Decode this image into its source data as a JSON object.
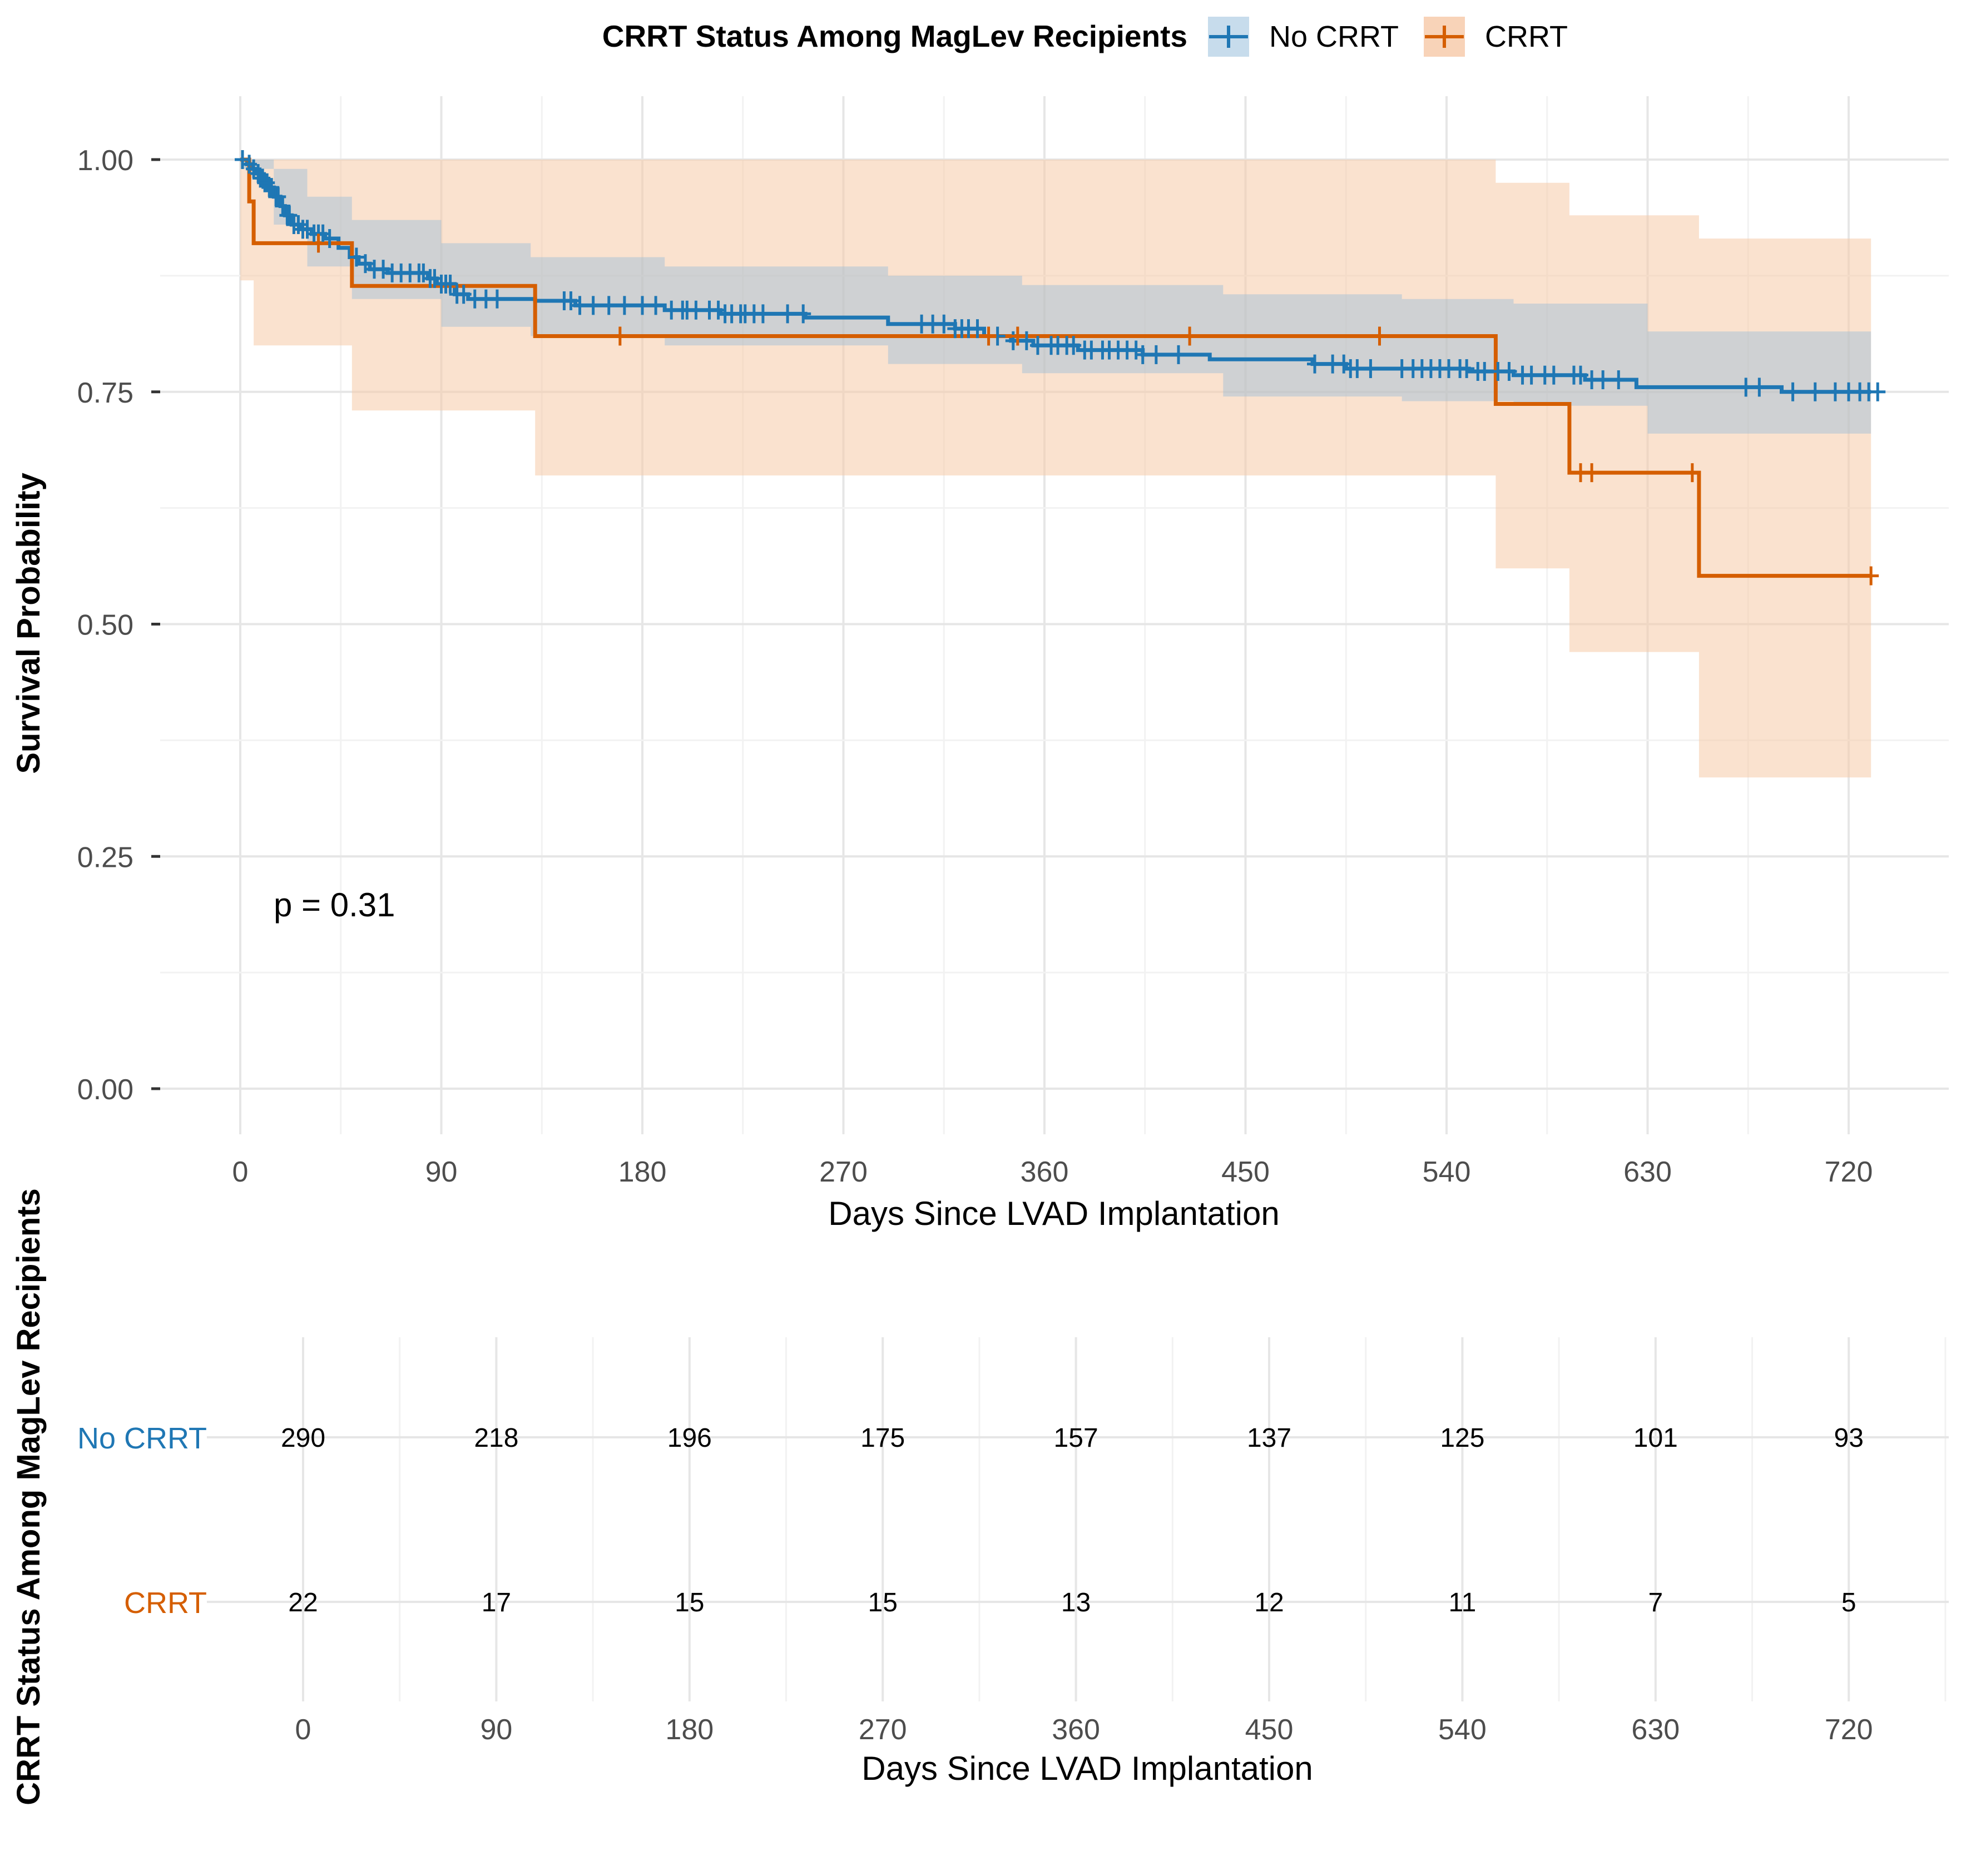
{
  "legend": {
    "title": "CRRT Status Among MagLev Recipients",
    "items": [
      {
        "label": "No CRRT",
        "color": "#1F77B4"
      },
      {
        "label": "CRRT",
        "color": "#D55E00"
      }
    ]
  },
  "annotation": "p = 0.31",
  "colors": {
    "no_crrt": "#1F77B4",
    "crrt": "#D55E00",
    "no_crrt_ci": "#9BBCD6",
    "crrt_ci": "#F5CBA7"
  },
  "chart_data": [
    {
      "type": "line",
      "subtype": "kaplan-meier",
      "title": "",
      "xlabel": "Days Since LVAD Implantation",
      "ylabel": "Survival Probability",
      "xlim": [
        -20,
        760
      ],
      "ylim": [
        -0.035,
        1.07
      ],
      "xticks": [
        0,
        90,
        180,
        270,
        360,
        450,
        540,
        630,
        720
      ],
      "yticks": [
        0.0,
        0.25,
        0.5,
        0.75,
        1.0
      ],
      "ytick_labels": [
        "0.00",
        "0.25",
        "0.50",
        "0.75",
        "1.00"
      ],
      "series": [
        {
          "name": "No CRRT",
          "steps": [
            [
              0,
              1.0
            ],
            [
              3,
              0.995
            ],
            [
              5,
              0.99
            ],
            [
              7,
              0.985
            ],
            [
              9,
              0.98
            ],
            [
              11,
              0.975
            ],
            [
              13,
              0.97
            ],
            [
              15,
              0.96
            ],
            [
              18,
              0.95
            ],
            [
              20,
              0.94
            ],
            [
              23,
              0.93
            ],
            [
              27,
              0.925
            ],
            [
              32,
              0.92
            ],
            [
              38,
              0.915
            ],
            [
              44,
              0.905
            ],
            [
              49,
              0.895
            ],
            [
              53,
              0.888
            ],
            [
              58,
              0.882
            ],
            [
              66,
              0.878
            ],
            [
              84,
              0.872
            ],
            [
              88,
              0.866
            ],
            [
              96,
              0.855
            ],
            [
              102,
              0.85
            ],
            [
              132,
              0.848
            ],
            [
              150,
              0.843
            ],
            [
              190,
              0.838
            ],
            [
              215,
              0.834
            ],
            [
              253,
              0.83
            ],
            [
              290,
              0.823
            ],
            [
              320,
              0.818
            ],
            [
              333,
              0.81
            ],
            [
              345,
              0.805
            ],
            [
              355,
              0.8
            ],
            [
              375,
              0.795
            ],
            [
              404,
              0.79
            ],
            [
              434,
              0.785
            ],
            [
              480,
              0.78
            ],
            [
              495,
              0.775
            ],
            [
              550,
              0.772
            ],
            [
              570,
              0.768
            ],
            [
              602,
              0.763
            ],
            [
              625,
              0.755
            ],
            [
              690,
              0.75
            ],
            [
              730,
              0.75
            ]
          ],
          "ci_upper": [
            [
              0,
              1.0
            ],
            [
              15,
              0.99
            ],
            [
              30,
              0.96
            ],
            [
              50,
              0.935
            ],
            [
              90,
              0.91
            ],
            [
              130,
              0.895
            ],
            [
              190,
              0.885
            ],
            [
              290,
              0.875
            ],
            [
              350,
              0.865
            ],
            [
              440,
              0.855
            ],
            [
              520,
              0.85
            ],
            [
              570,
              0.845
            ],
            [
              630,
              0.815
            ],
            [
              730,
              0.81
            ]
          ],
          "ci_lower": [
            [
              0,
              0.99
            ],
            [
              15,
              0.93
            ],
            [
              30,
              0.885
            ],
            [
              50,
              0.85
            ],
            [
              90,
              0.82
            ],
            [
              130,
              0.81
            ],
            [
              190,
              0.8
            ],
            [
              290,
              0.78
            ],
            [
              350,
              0.77
            ],
            [
              440,
              0.745
            ],
            [
              520,
              0.74
            ],
            [
              570,
              0.735
            ],
            [
              630,
              0.705
            ],
            [
              730,
              0.695
            ]
          ],
          "censor_times": [
            1,
            4,
            6,
            8,
            9,
            10,
            11,
            12,
            13,
            14,
            16,
            17,
            19,
            21,
            22,
            24,
            26,
            28,
            30,
            33,
            35,
            37,
            40,
            52,
            56,
            60,
            64,
            68,
            72,
            76,
            80,
            82,
            85,
            87,
            90,
            92,
            94,
            97,
            100,
            105,
            110,
            115,
            145,
            148,
            152,
            158,
            165,
            172,
            180,
            186,
            193,
            198,
            200,
            204,
            210,
            214,
            217,
            220,
            224,
            226,
            230,
            234,
            245,
            252,
            305,
            310,
            315,
            320,
            323,
            326,
            330,
            339,
            346,
            352,
            357,
            363,
            366,
            370,
            373,
            378,
            381,
            386,
            389,
            393,
            397,
            401,
            404,
            410,
            420,
            481,
            489,
            494,
            497,
            500,
            506,
            520,
            525,
            529,
            533,
            537,
            541,
            546,
            549,
            554,
            557,
            563,
            568,
            574,
            578,
            584,
            588,
            597,
            600,
            605,
            610,
            617,
            674,
            680,
            695,
            705,
            714,
            720,
            725,
            729,
            733
          ]
        },
        {
          "name": "CRRT",
          "steps": [
            [
              0,
              1.0
            ],
            [
              4,
              0.955
            ],
            [
              6,
              0.91
            ],
            [
              50,
              0.864
            ],
            [
              132,
              0.81
            ],
            [
              561,
              0.81
            ],
            [
              562,
              0.737
            ],
            [
              594,
              0.737
            ],
            [
              595,
              0.663
            ],
            [
              652,
              0.663
            ],
            [
              653,
              0.552
            ],
            [
              730,
              0.552
            ]
          ],
          "ci_upper": [
            [
              0,
              1.0
            ],
            [
              561,
              1.0
            ],
            [
              562,
              0.975
            ],
            [
              594,
              0.975
            ],
            [
              595,
              0.94
            ],
            [
              652,
              0.94
            ],
            [
              653,
              0.915
            ],
            [
              730,
              0.915
            ]
          ],
          "ci_lower": [
            [
              0,
              0.87
            ],
            [
              6,
              0.8
            ],
            [
              50,
              0.73
            ],
            [
              132,
              0.66
            ],
            [
              561,
              0.66
            ],
            [
              562,
              0.56
            ],
            [
              594,
              0.56
            ],
            [
              595,
              0.47
            ],
            [
              652,
              0.47
            ],
            [
              653,
              0.335
            ],
            [
              730,
              0.335
            ]
          ],
          "censor_times": [
            35,
            170,
            335,
            348,
            425,
            510,
            600,
            605,
            650,
            730
          ]
        }
      ]
    },
    {
      "type": "table",
      "subtype": "number-at-risk",
      "title": "",
      "xlabel": "Days Since LVAD Implantation",
      "ylabel": "CRRT Status Among MagLev Recipients",
      "xlim": [
        -20,
        760
      ],
      "xticks": [
        0,
        90,
        180,
        270,
        360,
        450,
        540,
        630,
        720
      ],
      "rows": [
        {
          "name": "No CRRT",
          "values": [
            290,
            218,
            196,
            175,
            157,
            137,
            125,
            101,
            93
          ]
        },
        {
          "name": "CRRT",
          "values": [
            22,
            17,
            15,
            15,
            13,
            12,
            11,
            7,
            5
          ]
        }
      ]
    }
  ]
}
